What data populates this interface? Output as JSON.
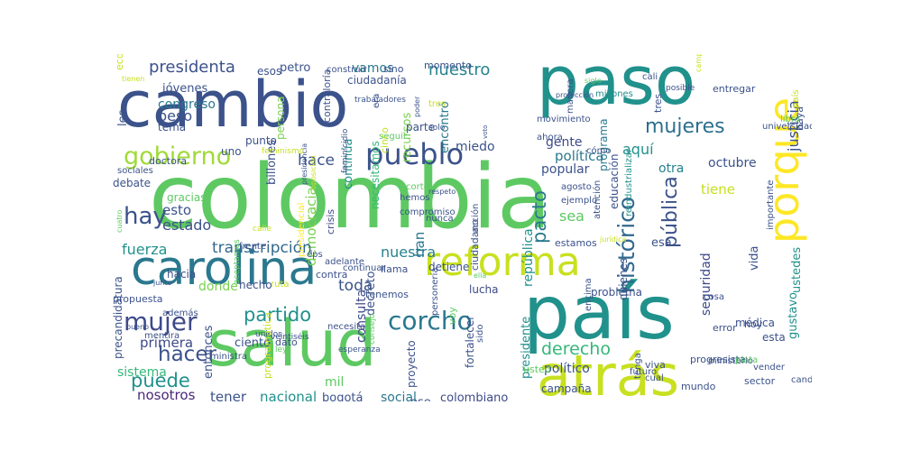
{
  "words": [
    {
      "text": "colombia",
      "color": "#5ec962"
    },
    {
      "text": "paso",
      "color": "#21918c"
    },
    {
      "text": "cambio",
      "color": "#3b528b"
    },
    {
      "text": "salud",
      "color": "#5ec962"
    },
    {
      "text": "país",
      "color": "#21918c"
    },
    {
      "text": "atrás",
      "color": "#c8e020"
    },
    {
      "text": "carolina",
      "color": "#2a788e"
    },
    {
      "text": "reforma",
      "color": "#c8e020"
    },
    {
      "text": "porque",
      "color": "#fde725"
    },
    {
      "text": "pueblo",
      "color": "#3b528b"
    },
    {
      "text": "gobierno",
      "color": "#a0da39"
    },
    {
      "text": "mujer",
      "color": "#3e4a89"
    },
    {
      "text": "corcho",
      "color": "#2a788e"
    },
    {
      "text": "mujeres",
      "color": "#2d708e"
    },
    {
      "text": "presidenta",
      "color": "#3b528b"
    },
    {
      "text": "nuestro",
      "color": "#26828e"
    },
    {
      "text": "histórico",
      "color": "#31688e"
    },
    {
      "text": "hacer",
      "color": "#3b528b"
    },
    {
      "text": "partido",
      "color": "#21918c"
    },
    {
      "text": "puede",
      "color": "#21918c"
    },
    {
      "text": "derecho",
      "color": "#35b779"
    },
    {
      "text": "pacto",
      "color": "#2a788e"
    },
    {
      "text": "pública",
      "color": "#3b528b"
    },
    {
      "text": "justicia",
      "color": "#3b528b"
    },
    {
      "text": "hay",
      "color": "#3b528b"
    },
    {
      "text": "democracia",
      "color": "#7ad151"
    },
    {
      "text": "transcripción",
      "color": "#31688e"
    },
    {
      "text": "primera",
      "color": "#3e4a89"
    },
    {
      "text": "tener",
      "color": "#3b528b"
    },
    {
      "text": "nacional",
      "color": "#21918c"
    },
    {
      "text": "bogotá",
      "color": "#3b528b"
    },
    {
      "text": "social",
      "color": "#2a788e"
    },
    {
      "text": "colombiano",
      "color": "#3e4a89"
    },
    {
      "text": "nosotros",
      "color": "#482878"
    },
    {
      "text": "sistema",
      "color": "#35b779"
    },
    {
      "text": "fuerza",
      "color": "#21918c"
    },
    {
      "text": "estado",
      "color": "#3b528b"
    },
    {
      "text": "esto",
      "color": "#3b528b"
    },
    {
      "text": "gracias",
      "color": "#5ec962"
    },
    {
      "text": "debate",
      "color": "#3b528b"
    },
    {
      "text": "hace",
      "color": "#3b528b"
    },
    {
      "text": "toda",
      "color": "#3b528b"
    },
    {
      "text": "nuestra",
      "color": "#26828e"
    },
    {
      "text": "consulta",
      "color": "#3e4a89"
    },
    {
      "text": "decreto",
      "color": "#3b528b"
    },
    {
      "text": "han",
      "color": "#2a788e"
    },
    {
      "text": "continúa",
      "color": "#21918c"
    },
    {
      "text": "necesitamos",
      "color": "#35b779"
    },
    {
      "text": "crisis",
      "color": "#3e4a89"
    },
    {
      "text": "congreso",
      "color": "#2a788e"
    },
    {
      "text": "peso",
      "color": "#3b528b"
    },
    {
      "text": "tema",
      "color": "#3b528b"
    },
    {
      "text": "petro",
      "color": "#3b528b"
    },
    {
      "text": "persona",
      "color": "#7ad151"
    },
    {
      "text": "billones",
      "color": "#3b528b"
    },
    {
      "text": "vamos",
      "color": "#2a788e"
    },
    {
      "text": "recursos",
      "color": "#7ad151"
    },
    {
      "text": "parte",
      "color": "#3b528b"
    },
    {
      "text": "encontró",
      "color": "#2a788e"
    },
    {
      "text": "programa",
      "color": "#2a788e"
    },
    {
      "text": "gente",
      "color": "#3e4a89"
    },
    {
      "text": "política",
      "color": "#2a788e"
    },
    {
      "text": "popular",
      "color": "#3b528b"
    },
    {
      "text": "aquí",
      "color": "#21918c"
    },
    {
      "text": "octubre",
      "color": "#3b528b"
    },
    {
      "text": "otra",
      "color": "#26828e"
    },
    {
      "text": "república",
      "color": "#21918c"
    },
    {
      "text": "sea",
      "color": "#5ec962"
    },
    {
      "text": "miedo",
      "color": "#3b528b"
    },
    {
      "text": "tiene",
      "color": "#c8e020"
    },
    {
      "text": "ustedes",
      "color": "#21918c"
    },
    {
      "text": "estamos",
      "color": "#3b528b"
    },
    {
      "text": "esa",
      "color": "#3b528b"
    },
    {
      "text": "seguridad",
      "color": "#3e4a89"
    },
    {
      "text": "gustavo",
      "color": "#21918c"
    },
    {
      "text": "hoy",
      "color": "#3b528b"
    },
    {
      "text": "médica",
      "color": "#3b528b"
    },
    {
      "text": "presidente",
      "color": "#21918c"
    },
    {
      "text": "político",
      "color": "#3b528b"
    },
    {
      "text": "esta",
      "color": "#3b528b"
    },
    {
      "text": "mil",
      "color": "#5ec962"
    },
    {
      "text": "ciento",
      "color": "#3b528b"
    },
    {
      "text": "entonces",
      "color": "#3b528b"
    },
    {
      "text": "donde",
      "color": "#7ad151"
    },
    {
      "text": "hecho",
      "color": "#3b528b"
    },
    {
      "text": "ese",
      "color": "#3b528b"
    },
    {
      "text": "campaña",
      "color": "#3b528b"
    },
    {
      "text": "proyecto",
      "color": "#3b528b"
    },
    {
      "text": "lucha",
      "color": "#3e4a89"
    },
    {
      "text": "tenemos",
      "color": "#3b528b"
    },
    {
      "text": "detiene",
      "color": "#3b528b"
    },
    {
      "text": "problema",
      "color": "#3b528b"
    },
    {
      "text": "quienes",
      "color": "#3b528b"
    },
    {
      "text": "usted",
      "color": "#5ec962"
    },
    {
      "text": "mundo",
      "color": "#3b528b"
    },
    {
      "text": "les",
      "color": "#3b528b"
    },
    {
      "text": "jóvenes",
      "color": "#3b528b"
    },
    {
      "text": "ciudadanía",
      "color": "#3b528b"
    },
    {
      "text": "contraloría",
      "color": "#3b528b"
    },
    {
      "text": "sino",
      "color": "#3b528b"
    },
    {
      "text": "momento",
      "color": "#3b528b"
    },
    {
      "text": "construir",
      "color": "#3b528b"
    },
    {
      "text": "esos",
      "color": "#3b528b"
    },
    {
      "text": "punto",
      "color": "#3b528b"
    },
    {
      "text": "uno",
      "color": "#3b528b"
    },
    {
      "text": "doctora",
      "color": "#3b528b"
    },
    {
      "text": "sociales",
      "color": "#3b528b"
    },
    {
      "text": "seguir",
      "color": "#5ec962"
    },
    {
      "text": "movimiento",
      "color": "#3b528b"
    },
    {
      "text": "ahora",
      "color": "#3b528b"
    },
    {
      "text": "cómo",
      "color": "#3b528b"
    },
    {
      "text": "manera",
      "color": "#3b528b"
    },
    {
      "text": "tres",
      "color": "#3b528b"
    },
    {
      "text": "millones",
      "color": "#21918c"
    },
    {
      "text": "cali",
      "color": "#3b528b"
    },
    {
      "text": "entregar",
      "color": "#3b528b"
    },
    {
      "text": "posible",
      "color": "#3b528b"
    },
    {
      "text": "haya",
      "color": "#3b528b"
    },
    {
      "text": "universidad",
      "color": "#3b528b"
    },
    {
      "text": "libro",
      "color": "#5ec962"
    },
    {
      "text": "corte",
      "color": "#5ec962"
    },
    {
      "text": "hemos",
      "color": "#3b528b"
    },
    {
      "text": "nunca",
      "color": "#3b528b"
    },
    {
      "text": "compromiso",
      "color": "#3b528b"
    },
    {
      "text": "agosto",
      "color": "#3b528b"
    },
    {
      "text": "ejemplo",
      "color": "#3b528b"
    },
    {
      "text": "acción",
      "color": "#3b528b"
    },
    {
      "text": "atención",
      "color": "#3b528b"
    },
    {
      "text": "educación",
      "color": "#3b528b"
    },
    {
      "text": "reindustrializar",
      "color": "#21918c"
    },
    {
      "text": "importante",
      "color": "#3b528b"
    },
    {
      "text": "propuesta",
      "color": "#3b528b"
    },
    {
      "text": "además",
      "color": "#3b528b"
    },
    {
      "text": "hacia",
      "color": "#3b528b"
    },
    {
      "text": "junto",
      "color": "#3b528b"
    },
    {
      "text": "ministra",
      "color": "#3b528b"
    },
    {
      "text": "unidos",
      "color": "#3b528b"
    },
    {
      "text": "necesita",
      "color": "#3b528b"
    },
    {
      "text": "esperanza",
      "color": "#3b528b"
    },
    {
      "text": "consejo",
      "color": "#5ec962"
    },
    {
      "text": "fortalecer",
      "color": "#3b528b"
    },
    {
      "text": "sido",
      "color": "#3b528b"
    },
    {
      "text": "voy",
      "color": "#5ec962"
    },
    {
      "text": "personería",
      "color": "#3b528b"
    },
    {
      "text": "ciudadano",
      "color": "#3b528b"
    },
    {
      "text": "contra",
      "color": "#3b528b"
    },
    {
      "text": "continuar",
      "color": "#3b528b"
    },
    {
      "text": "eps",
      "color": "#3b528b"
    },
    {
      "text": "adelante",
      "color": "#3b528b"
    },
    {
      "text": "llama",
      "color": "#3b528b"
    },
    {
      "text": "ruta",
      "color": "#c8e020"
    },
    {
      "text": "dato",
      "color": "#3b528b"
    },
    {
      "text": "encima",
      "color": "#3b528b"
    },
    {
      "text": "viva",
      "color": "#3b528b"
    },
    {
      "text": "cual",
      "color": "#3b528b"
    },
    {
      "text": "futuro",
      "color": "#3b528b"
    },
    {
      "text": "tenga",
      "color": "#3b528b"
    },
    {
      "text": "progresista",
      "color": "#3b528b"
    },
    {
      "text": "ministerio",
      "color": "#3b528b"
    },
    {
      "text": "sector",
      "color": "#3b528b"
    },
    {
      "text": "plata",
      "color": "#5ec962"
    },
    {
      "text": "vender",
      "color": "#3b528b"
    },
    {
      "text": "candidata",
      "color": "#3b528b"
    },
    {
      "text": "error",
      "color": "#3b528b"
    },
    {
      "text": "cosa",
      "color": "#3b528b"
    },
    {
      "text": "vida",
      "color": "#3b528b"
    },
    {
      "text": "presidencial",
      "color": "#fde725"
    },
    {
      "text": "precandidatura",
      "color": "#3b528b"
    },
    {
      "text": "mentira",
      "color": "#3b528b"
    },
    {
      "text": "bueno",
      "color": "#3b528b"
    },
    {
      "text": "cuatro",
      "color": "#5ec962"
    },
    {
      "text": "aceptamos",
      "color": "#5ec962"
    },
    {
      "text": "veintiséis",
      "color": "#3b528b"
    },
    {
      "text": "frente",
      "color": "#3b528b"
    },
    {
      "text": "ley",
      "color": "#5ec962"
    },
    {
      "text": "calle",
      "color": "#c8e020"
    },
    {
      "text": "cinco",
      "color": "#c8e020"
    },
    {
      "text": "feminicidio",
      "color": "#3b528b"
    },
    {
      "text": "era",
      "color": "#3b528b"
    },
    {
      "text": "trabajadores",
      "color": "#3b528b"
    },
    {
      "text": "poder",
      "color": "#3b528b"
    },
    {
      "text": "solo",
      "color": "#3b528b"
    },
    {
      "text": "voto",
      "color": "#3b528b"
    },
    {
      "text": "protección",
      "color": "#3b528b"
    },
    {
      "text": "siglo",
      "color": "#5ec962"
    },
    {
      "text": "campesino",
      "color": "#c8e020"
    },
    {
      "text": "respeto",
      "color": "#3b528b"
    },
    {
      "text": "presidencia",
      "color": "#3b528b"
    },
    {
      "text": "oposición",
      "color": "#c8e020"
    },
    {
      "text": "jurídica",
      "color": "#c8e020"
    },
    {
      "text": "tienen",
      "color": "#c8e020"
    },
    {
      "text": "programática",
      "color": "#c8e020"
    },
    {
      "text": "feminismo",
      "color": "#c8e020"
    },
    {
      "text": "ella",
      "color": "#5ec962"
    },
    {
      "text": "tres",
      "color": "#c8e020"
    },
    {
      "text": "económico",
      "color": "#c8e020"
    },
    {
      "text": "país",
      "color": "#c8e020"
    },
    {
      "text": "juntos",
      "color": "#c8e020"
    },
    {
      "text": "historia",
      "color": "#c8e020"
    }
  ]
}
